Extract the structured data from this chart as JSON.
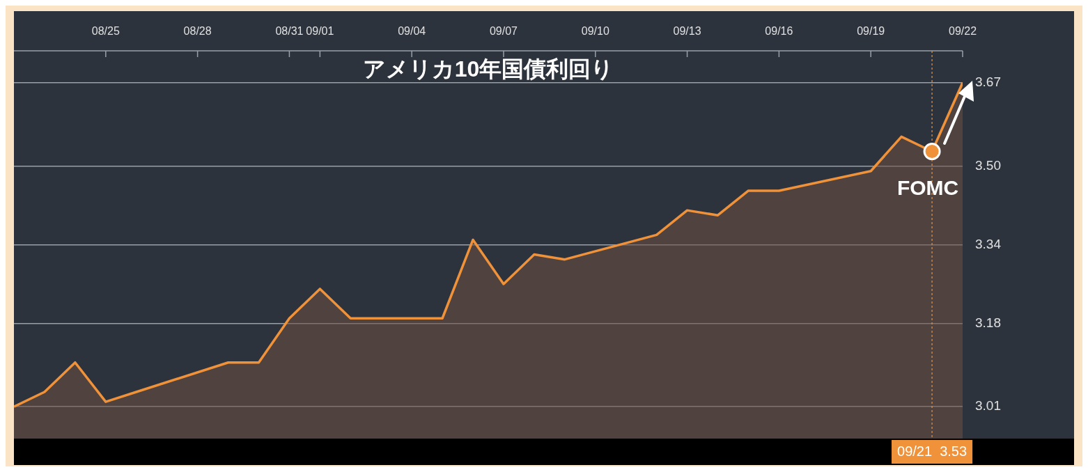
{
  "chart_data": {
    "type": "area",
    "title": "アメリカ10年国債利回り",
    "x": [
      "--08-22",
      "--08-23",
      "--08-24",
      "--08-25",
      "--08-26",
      "--08-29",
      "--08-30",
      "--08-31",
      "--09-01",
      "--09-02",
      "--09-05",
      "--09-06",
      "--09-07",
      "--09-08",
      "--09-09",
      "--09-12",
      "--09-13",
      "--09-14",
      "--09-15",
      "--09-16",
      "--09-19",
      "--09-20",
      "--09-21",
      "--09-22"
    ],
    "values": [
      3.01,
      3.04,
      3.1,
      3.02,
      3.04,
      3.1,
      3.1,
      3.19,
      3.25,
      3.19,
      3.19,
      3.35,
      3.26,
      3.32,
      3.31,
      3.36,
      3.41,
      3.4,
      3.45,
      3.45,
      3.49,
      3.56,
      3.53,
      3.67
    ],
    "color": "#f0923a",
    "xlim": [
      "--08-22",
      "--09-22"
    ],
    "xticks": [
      {
        "value": "--08-25",
        "label": "08/25"
      },
      {
        "value": "--08-28",
        "label": "08/28"
      },
      {
        "value": "--08-31",
        "label": "08/31"
      },
      {
        "value": "--09-01",
        "label": "09/01"
      },
      {
        "value": "--09-04",
        "label": "09/04"
      },
      {
        "value": "--09-07",
        "label": "09/07"
      },
      {
        "value": "--09-10",
        "label": "09/10"
      },
      {
        "value": "--09-13",
        "label": "09/13"
      },
      {
        "value": "--09-16",
        "label": "09/16"
      },
      {
        "value": "--09-19",
        "label": "09/19"
      },
      {
        "value": "--09-22",
        "label": "09/22"
      }
    ],
    "ylim": [
      2.945,
      3.735
    ],
    "yticks": [
      3.01,
      3.18,
      3.34,
      {
        "value": 3.5,
        "label": "3.50"
      },
      3.67
    ],
    "grid": "y",
    "legend": false,
    "marker": "none",
    "line_style": "solid",
    "ref_lines": [
      {
        "axis": "x",
        "value": "--09-21",
        "label": "09/21  3.53",
        "color": "#f0923a",
        "line_style": "dotted"
      }
    ],
    "annotations": [
      {
        "text": "FOMC",
        "x": "--09-21",
        "y": 3.53
      }
    ]
  }
}
